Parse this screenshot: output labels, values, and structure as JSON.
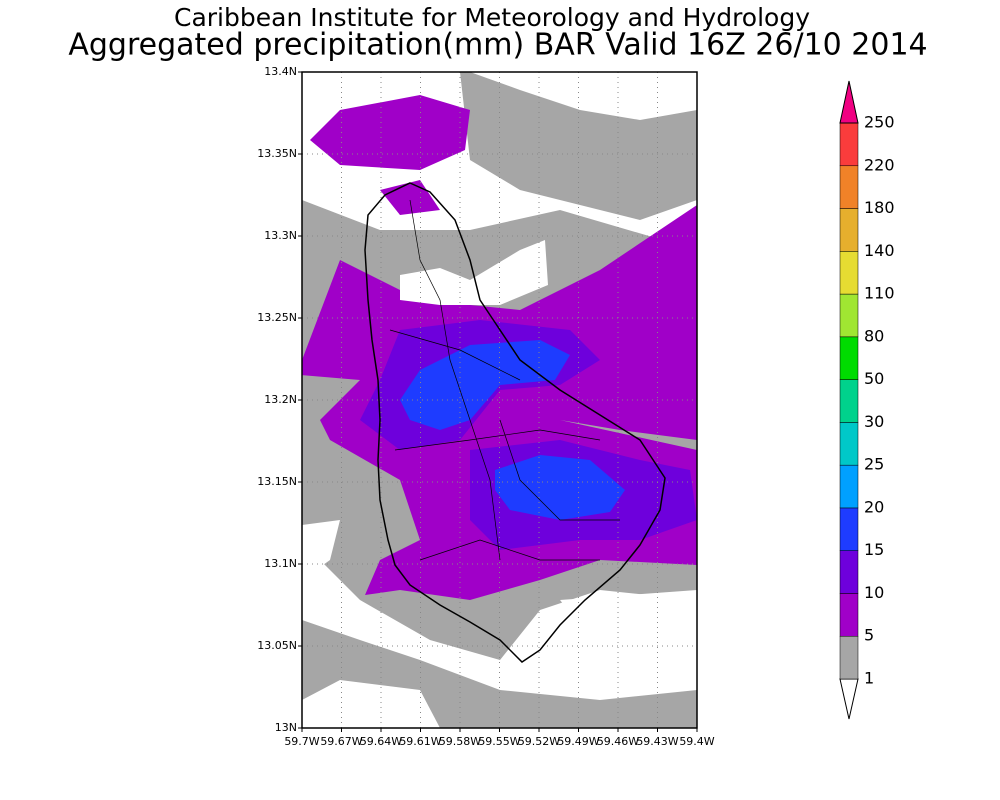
{
  "chart_data": {
    "type": "map",
    "title": "Caribbean Institute for Meteorology and Hydrology",
    "subtitle": "Aggregated precipitation(mm) BAR Valid 16Z 26/10 2014",
    "xlim": [
      -59.7,
      -59.4
    ],
    "ylim": [
      13.0,
      13.4
    ],
    "xticks": [
      {
        "value": -59.7,
        "label": "59.7W"
      },
      {
        "value": -59.67,
        "label": "59.67W"
      },
      {
        "value": -59.64,
        "label": "59.64W"
      },
      {
        "value": -59.61,
        "label": "59.61W"
      },
      {
        "value": -59.58,
        "label": "59.58W"
      },
      {
        "value": -59.55,
        "label": "59.55W"
      },
      {
        "value": -59.52,
        "label": "59.52W"
      },
      {
        "value": -59.49,
        "label": "59.49W"
      },
      {
        "value": -59.46,
        "label": "59.46W"
      },
      {
        "value": -59.43,
        "label": "59.43W"
      },
      {
        "value": -59.4,
        "label": "59.4W"
      }
    ],
    "yticks": [
      {
        "value": 13.0,
        "label": "13N"
      },
      {
        "value": 13.05,
        "label": "13.05N"
      },
      {
        "value": 13.1,
        "label": "13.1N"
      },
      {
        "value": 13.15,
        "label": "13.15N"
      },
      {
        "value": 13.2,
        "label": "13.2N"
      },
      {
        "value": 13.25,
        "label": "13.25N"
      },
      {
        "value": 13.3,
        "label": "13.3N"
      },
      {
        "value": 13.35,
        "label": "13.35N"
      },
      {
        "value": 13.4,
        "label": "13.4N"
      }
    ],
    "grid": true,
    "colorbar": {
      "levels": [
        1,
        5,
        10,
        15,
        20,
        25,
        30,
        50,
        80,
        110,
        140,
        180,
        220,
        250
      ],
      "colors": [
        "#ffffff",
        "#a6a6a6",
        "#a000c8",
        "#6e00dc",
        "#1e3cff",
        "#00a0ff",
        "#00c8c8",
        "#00d28c",
        "#00dc00",
        "#a0e632",
        "#e6dc32",
        "#e6af2d",
        "#f08228",
        "#fa3c3c",
        "#f00082"
      ]
    }
  }
}
